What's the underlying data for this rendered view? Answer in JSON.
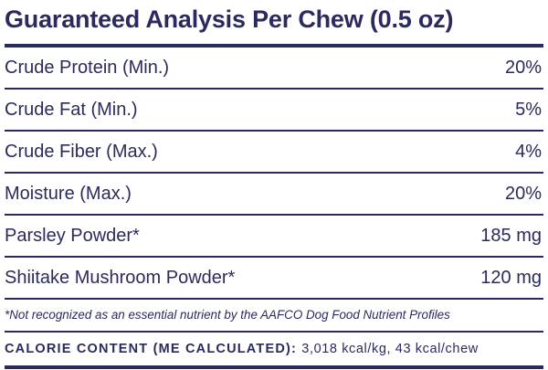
{
  "title": "Guaranteed Analysis Per Chew (0.5 oz)",
  "rows": [
    {
      "name": "Crude Protein (Min.)",
      "value": "20%"
    },
    {
      "name": "Crude Fat (Min.)",
      "value": "5%"
    },
    {
      "name": "Crude Fiber (Max.)",
      "value": "4%"
    },
    {
      "name": "Moisture (Max.)",
      "value": "20%"
    },
    {
      "name": "Parsley Powder*",
      "value": "185 mg"
    },
    {
      "name": "Shiitake Mushroom Powder*",
      "value": "120 mg"
    }
  ],
  "footnote": "*Not recognized as an essential nutrient by the AAFCO Dog Food Nutrient Profiles",
  "calorie": {
    "label": "CALORIE CONTENT (ME CALCULATED):",
    "value": "3,018 kcal/kg, 43 kcal/chew"
  },
  "colors": {
    "text": "#2b2a5e",
    "background": "#ffffff"
  }
}
